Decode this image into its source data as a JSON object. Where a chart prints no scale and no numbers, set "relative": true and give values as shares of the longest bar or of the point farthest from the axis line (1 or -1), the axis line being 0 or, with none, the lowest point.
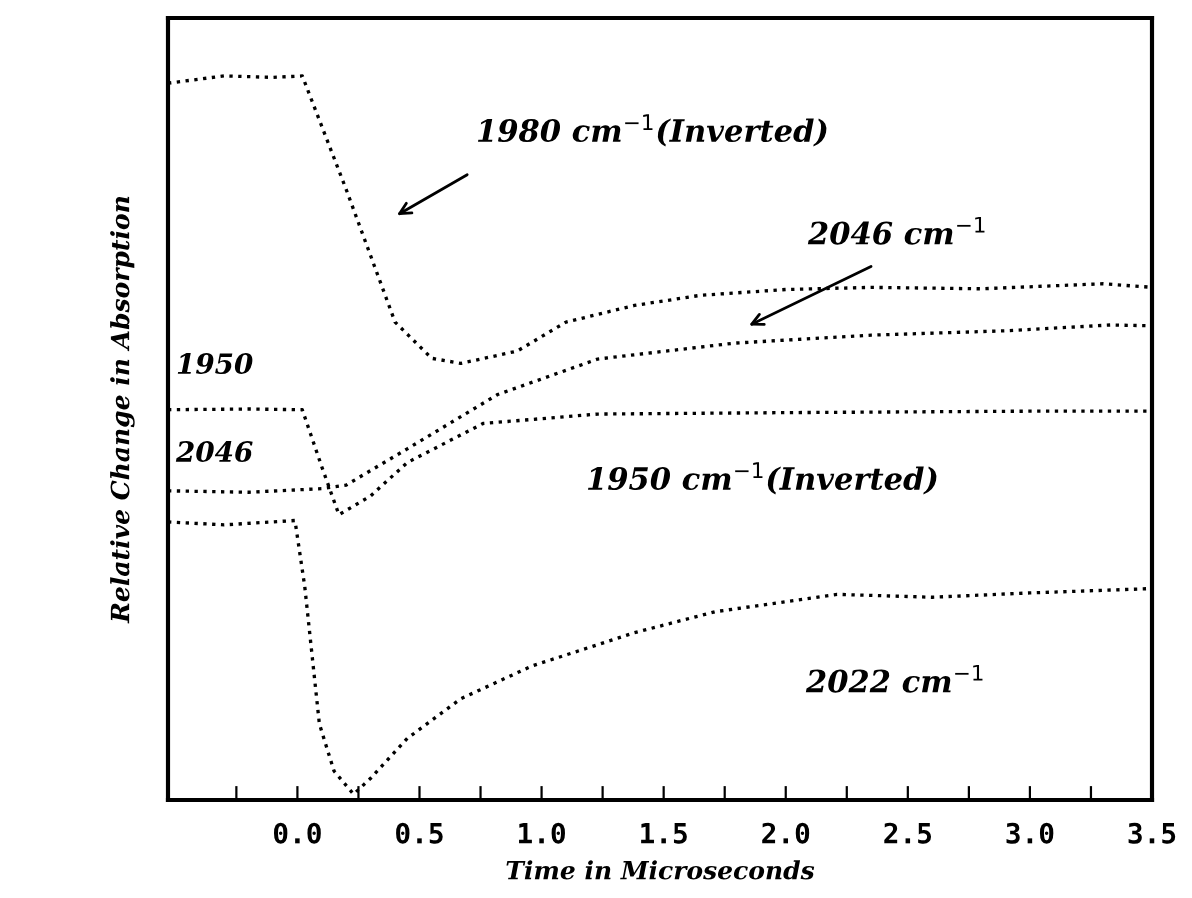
{
  "chart_data": {
    "type": "line",
    "relative": true,
    "xlabel": "Time in Microseconds",
    "ylabel": "Relative Change in Absorption",
    "xlim": [
      -0.53,
      3.5
    ],
    "xticks": [
      {
        "value": -0.25,
        "label": null
      },
      {
        "value": 0,
        "label": "0.0"
      },
      {
        "value": 0.25,
        "label": null
      },
      0.5,
      {
        "value": 0.75,
        "label": null
      },
      {
        "value": 1,
        "label": "1.0"
      },
      {
        "value": 1.25,
        "label": null
      },
      1.5,
      {
        "value": 1.75,
        "label": null
      },
      {
        "value": 2,
        "label": "2.0"
      },
      {
        "value": 2.25,
        "label": null
      },
      2.5,
      {
        "value": 2.75,
        "label": null
      },
      {
        "value": 3,
        "label": "3.0"
      },
      {
        "value": 3.25,
        "label": null
      },
      3.5
    ],
    "marker": "none",
    "line_style": "dotted",
    "grid": false,
    "legend": false,
    "series": [
      {
        "color": "#000000",
        "x": [
          -0.53,
          -0.3,
          -0.1,
          0.02,
          0.2,
          0.4,
          0.55,
          0.67,
          0.9,
          1.1,
          1.38,
          1.65,
          2.0,
          2.35,
          2.8,
          3.3,
          3.5
        ],
        "values": [
          0.99,
          1.0,
          0.998,
          1.0,
          0.843,
          0.66,
          0.61,
          0.603,
          0.62,
          0.66,
          0.683,
          0.697,
          0.705,
          0.708,
          0.706,
          0.713,
          0.708
        ]
      },
      {
        "color": "#000000",
        "x": [
          -0.53,
          -0.2,
          0.1,
          0.2,
          0.45,
          0.82,
          1.23,
          1.79,
          2.35,
          2.9,
          3.33,
          3.5
        ],
        "values": [
          0.427,
          0.425,
          0.43,
          0.435,
          0.485,
          0.56,
          0.609,
          0.631,
          0.642,
          0.648,
          0.656,
          0.655
        ]
      },
      {
        "color": "#000000",
        "x": [
          -0.53,
          -0.2,
          0.02,
          0.1,
          0.17,
          0.3,
          0.45,
          0.76,
          1.23,
          2.0,
          3.0,
          3.5
        ],
        "values": [
          0.539,
          0.54,
          0.539,
          0.46,
          0.394,
          0.42,
          0.466,
          0.52,
          0.533,
          0.535,
          0.537,
          0.537
        ]
      },
      {
        "color": "#000000",
        "x": [
          -0.53,
          -0.3,
          -0.01,
          0.03,
          0.09,
          0.15,
          0.23,
          0.3,
          0.45,
          0.67,
          0.96,
          1.38,
          1.71,
          2.21,
          2.6,
          3.0,
          3.5
        ],
        "values": [
          0.384,
          0.38,
          0.386,
          0.295,
          0.105,
          0.04,
          0.008,
          0.03,
          0.085,
          0.14,
          0.185,
          0.231,
          0.26,
          0.284,
          0.28,
          0.286,
          0.292
        ]
      }
    ],
    "annotations": [
      "1980 cm$^{−1}$(Inverted)",
      "2046 cm$^{−1}$",
      "1950",
      "2046",
      "1950 cm$^{−1}$(Inverted)",
      "2022 cm$^{−1}$"
    ]
  }
}
